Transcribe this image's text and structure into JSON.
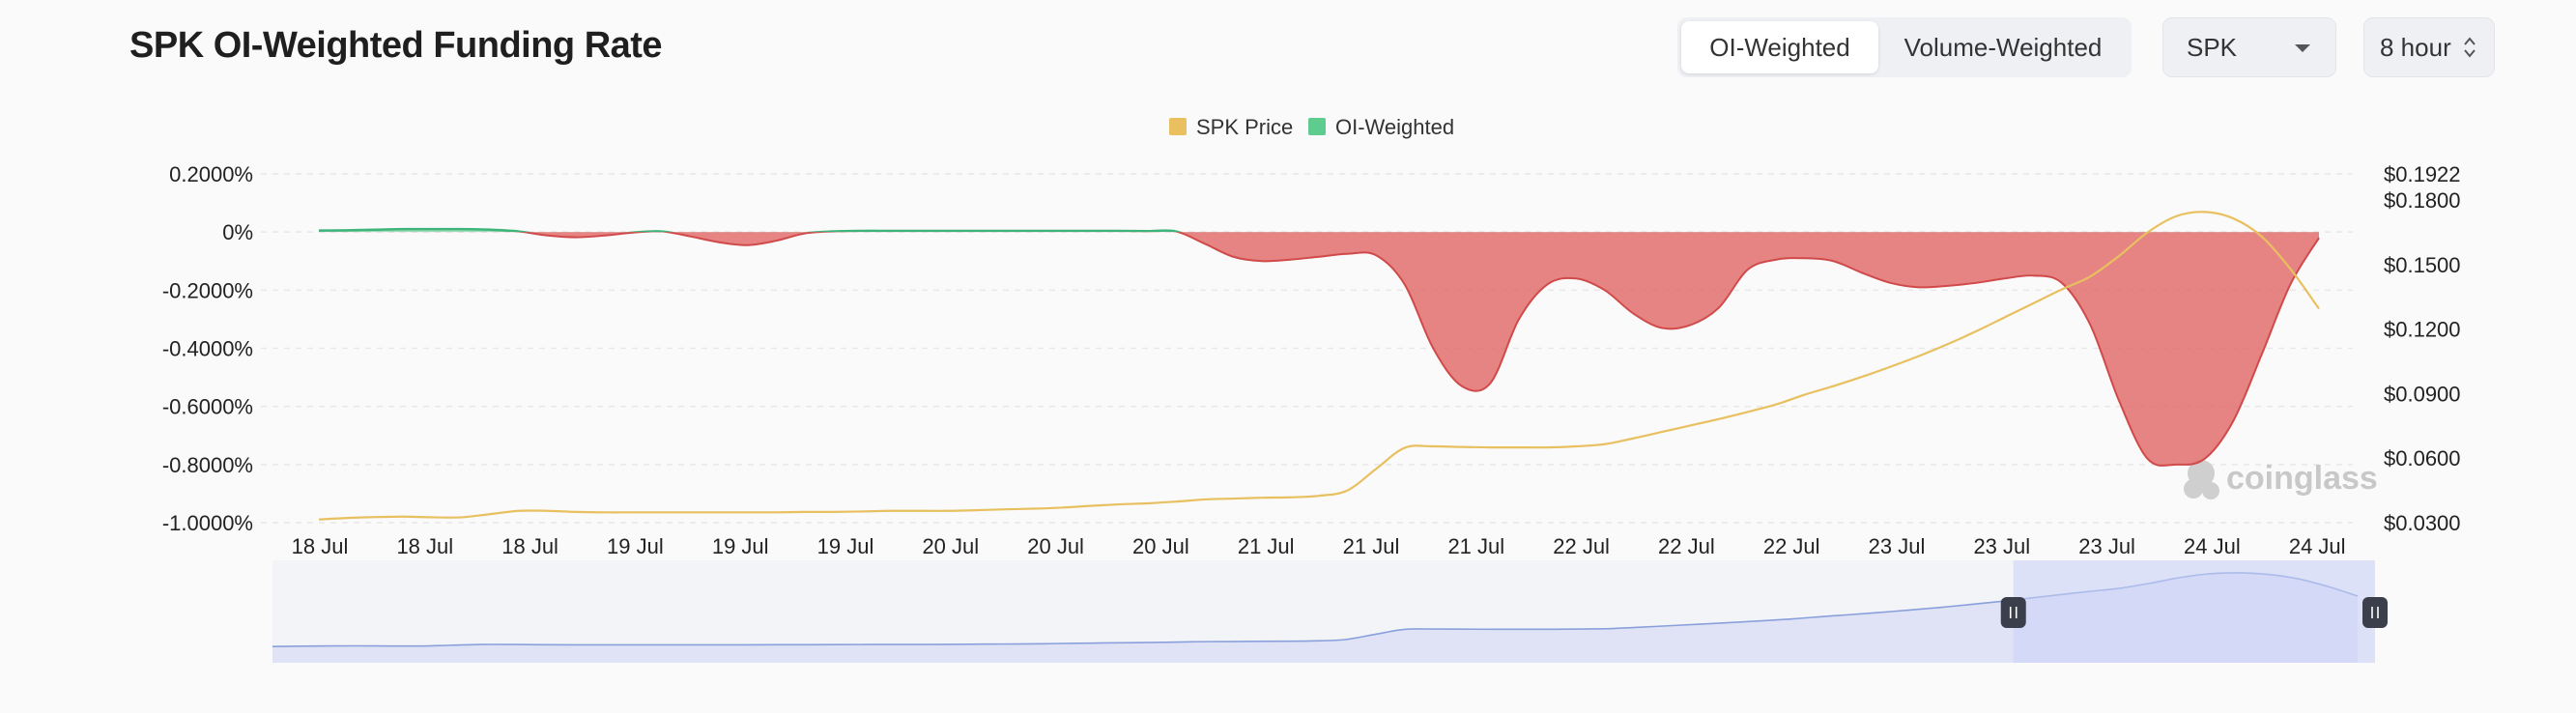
{
  "header": {
    "title": "SPK OI-Weighted Funding Rate",
    "tabs": [
      {
        "label": "OI-Weighted",
        "active": true
      },
      {
        "label": "Volume-Weighted",
        "active": false
      }
    ],
    "coin_select": {
      "value": "SPK",
      "icon": "chevron-down-icon"
    },
    "interval_select": {
      "value": "8 hour",
      "icon": "up-down-chevron-icon"
    }
  },
  "watermark": {
    "text": "coinglass",
    "icon": "coinglass-logo-icon"
  },
  "chart_data": {
    "type": "area",
    "title": "",
    "legend": [
      {
        "name": "SPK Price",
        "color": "#e8c060"
      },
      {
        "name": "OI-Weighted",
        "color": "#5ecb8f"
      }
    ],
    "legend_position": "top-center",
    "grid": true,
    "x_tick_labels": [
      "18 Jul",
      "18 Jul",
      "18 Jul",
      "19 Jul",
      "19 Jul",
      "19 Jul",
      "20 Jul",
      "20 Jul",
      "20 Jul",
      "21 Jul",
      "21 Jul",
      "21 Jul",
      "22 Jul",
      "22 Jul",
      "22 Jul",
      "23 Jul",
      "23 Jul",
      "23 Jul",
      "24 Jul",
      "24 Jul"
    ],
    "y_left": {
      "tick_labels": [
        "0.2000%",
        "0%",
        "-0.2000%",
        "-0.4000%",
        "-0.6000%",
        "-0.8000%",
        "-1.0000%"
      ],
      "ticks": [
        0.2,
        0,
        -0.2,
        -0.4,
        -0.6,
        -0.8,
        -1.0
      ],
      "range": [
        -1.0,
        0.2
      ]
    },
    "y_right": {
      "tick_labels": [
        "$0.1922",
        "$0.1800",
        "$0.1500",
        "$0.1200",
        "$0.0900",
        "$0.0600",
        "$0.0300"
      ],
      "ticks": [
        0.1922,
        0.18,
        0.15,
        0.12,
        0.09,
        0.06,
        0.03
      ],
      "range": [
        0.03,
        0.1922
      ]
    },
    "series": [
      {
        "name": "OI-Weighted",
        "axis": "left",
        "positive_color": "#5ecb8f",
        "negative_color": "#e06262",
        "values": [
          0.005,
          0.006,
          0.008,
          0.01,
          0.01,
          0.01,
          0.008,
          0.002,
          -0.012,
          -0.018,
          -0.012,
          -0.002,
          0.002,
          -0.015,
          -0.035,
          -0.045,
          -0.03,
          -0.005,
          0.002,
          0.004,
          0.004,
          0.004,
          0.004,
          0.004,
          0.004,
          0.004,
          0.004,
          0.004,
          0.004,
          0.003,
          0.002,
          -0.04,
          -0.085,
          -0.1,
          -0.095,
          -0.085,
          -0.075,
          -0.08,
          -0.18,
          -0.4,
          -0.53,
          -0.52,
          -0.3,
          -0.18,
          -0.16,
          -0.2,
          -0.28,
          -0.33,
          -0.32,
          -0.26,
          -0.13,
          -0.095,
          -0.09,
          -0.1,
          -0.14,
          -0.175,
          -0.19,
          -0.185,
          -0.175,
          -0.16,
          -0.15,
          -0.175,
          -0.32,
          -0.58,
          -0.78,
          -0.8,
          -0.78,
          -0.65,
          -0.42,
          -0.18,
          -0.02
        ]
      },
      {
        "name": "SPK Price",
        "axis": "right",
        "color": "#e8c060",
        "values": [
          0.0315,
          0.0322,
          0.0326,
          0.0328,
          0.0325,
          0.0325,
          0.034,
          0.0355,
          0.0355,
          0.035,
          0.0348,
          0.0348,
          0.0348,
          0.0348,
          0.0348,
          0.0348,
          0.0348,
          0.035,
          0.035,
          0.0352,
          0.0355,
          0.0355,
          0.0355,
          0.0358,
          0.0362,
          0.0365,
          0.037,
          0.0378,
          0.0385,
          0.039,
          0.0398,
          0.0408,
          0.0412,
          0.0416,
          0.0418,
          0.0425,
          0.045,
          0.055,
          0.0648,
          0.0655,
          0.0652,
          0.065,
          0.065,
          0.065,
          0.0655,
          0.0665,
          0.0692,
          0.0722,
          0.0752,
          0.0782,
          0.0815,
          0.085,
          0.0895,
          0.0935,
          0.0978,
          0.1025,
          0.1075,
          0.113,
          0.119,
          0.1255,
          0.132,
          0.1385,
          0.1445,
          0.154,
          0.165,
          0.1725,
          0.1745,
          0.1715,
          0.163,
          0.148,
          0.1295
        ]
      }
    ],
    "navigator": {
      "selected_range_fraction": [
        0.828,
        1.0
      ]
    }
  }
}
